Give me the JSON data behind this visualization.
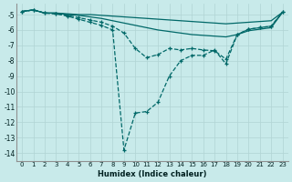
{
  "xlabel": "Humidex (Indice chaleur)",
  "bg_color": "#c8eaea",
  "grid_color": "#b0d4d4",
  "line_color": "#006868",
  "xlim": [
    -0.5,
    23.5
  ],
  "ylim": [
    -14.5,
    -4.3
  ],
  "yticks": [
    -14,
    -13,
    -12,
    -11,
    -10,
    -9,
    -8,
    -7,
    -6,
    -5
  ],
  "xticks": [
    0,
    1,
    2,
    3,
    4,
    5,
    6,
    7,
    8,
    9,
    10,
    11,
    12,
    13,
    14,
    15,
    16,
    17,
    18,
    19,
    20,
    21,
    22,
    23
  ],
  "x": [
    0,
    1,
    2,
    3,
    4,
    5,
    6,
    7,
    8,
    9,
    10,
    11,
    12,
    13,
    14,
    15,
    16,
    17,
    18,
    19,
    20,
    21,
    22,
    23
  ],
  "series": [
    {
      "y": [
        -4.8,
        -4.7,
        -4.9,
        -4.9,
        -4.95,
        -5.0,
        -5.0,
        -5.05,
        -5.1,
        -5.15,
        -5.2,
        -5.25,
        -5.3,
        -5.35,
        -5.4,
        -5.45,
        -5.5,
        -5.55,
        -5.6,
        -5.55,
        -5.5,
        -5.45,
        -5.4,
        -4.85
      ],
      "style": "solid",
      "marked": false
    },
    {
      "y": [
        -4.8,
        -4.7,
        -4.9,
        -4.9,
        -5.0,
        -5.05,
        -5.15,
        -5.25,
        -5.4,
        -5.55,
        -5.7,
        -5.85,
        -6.0,
        -6.1,
        -6.2,
        -6.3,
        -6.35,
        -6.4,
        -6.45,
        -6.3,
        -6.05,
        -5.95,
        -5.85,
        -4.85
      ],
      "style": "solid",
      "marked": false
    },
    {
      "y": [
        -4.8,
        -4.7,
        -4.9,
        -4.95,
        -5.05,
        -5.2,
        -5.35,
        -5.5,
        -5.75,
        -6.2,
        -7.2,
        -7.8,
        -7.6,
        -7.2,
        -7.3,
        -7.2,
        -7.3,
        -7.35,
        -7.9,
        -6.3,
        -5.95,
        -5.85,
        -5.75,
        -4.85
      ],
      "style": "dotted",
      "marked": true
    },
    {
      "y": [
        -4.8,
        -4.7,
        -4.9,
        -4.95,
        -5.1,
        -5.3,
        -5.5,
        -5.7,
        -6.0,
        -13.8,
        -11.4,
        -11.3,
        -10.7,
        -9.0,
        -8.0,
        -7.65,
        -7.65,
        -7.3,
        -8.2,
        -6.3,
        -5.95,
        -5.85,
        -5.75,
        -4.85
      ],
      "style": "dotted",
      "marked": true
    }
  ]
}
